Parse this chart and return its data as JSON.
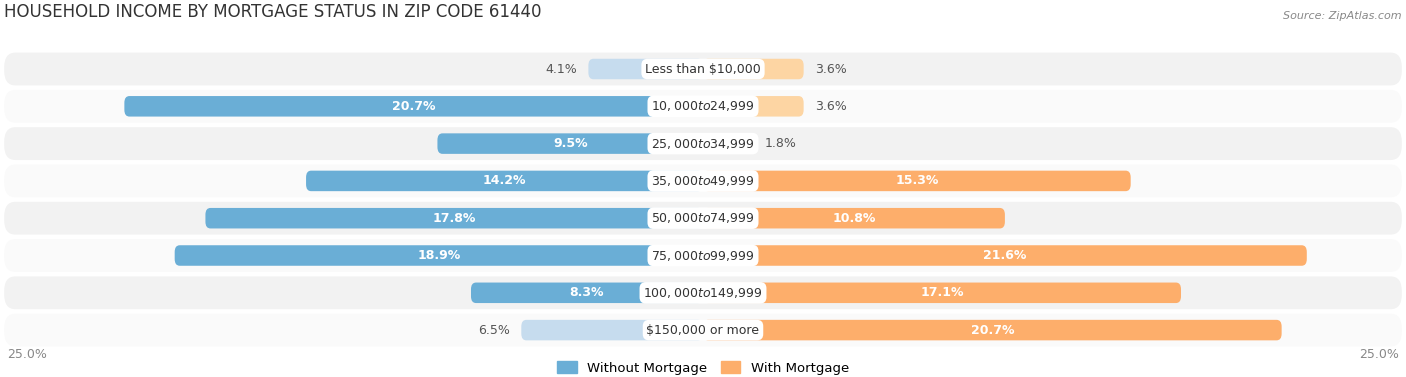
{
  "title": "HOUSEHOLD INCOME BY MORTGAGE STATUS IN ZIP CODE 61440",
  "source": "Source: ZipAtlas.com",
  "categories": [
    "Less than $10,000",
    "$10,000 to $24,999",
    "$25,000 to $34,999",
    "$35,000 to $49,999",
    "$50,000 to $74,999",
    "$75,000 to $99,999",
    "$100,000 to $149,999",
    "$150,000 or more"
  ],
  "without_mortgage": [
    4.1,
    20.7,
    9.5,
    14.2,
    17.8,
    18.9,
    8.3,
    6.5
  ],
  "with_mortgage": [
    3.6,
    3.6,
    1.8,
    15.3,
    10.8,
    21.6,
    17.1,
    20.7
  ],
  "color_without": "#6aaed6",
  "color_with": "#fdae6b",
  "color_without_light": "#c6dcee",
  "color_with_light": "#fdd5a3",
  "row_bg_odd": "#f2f2f2",
  "row_bg_even": "#fafafa",
  "xlim": 25.0,
  "axis_label_left": "25.0%",
  "axis_label_right": "25.0%",
  "legend_without": "Without Mortgage",
  "legend_with": "With Mortgage",
  "title_fontsize": 12,
  "bar_height": 0.55,
  "label_fontsize": 9,
  "category_fontsize": 9,
  "inside_label_threshold": 8
}
